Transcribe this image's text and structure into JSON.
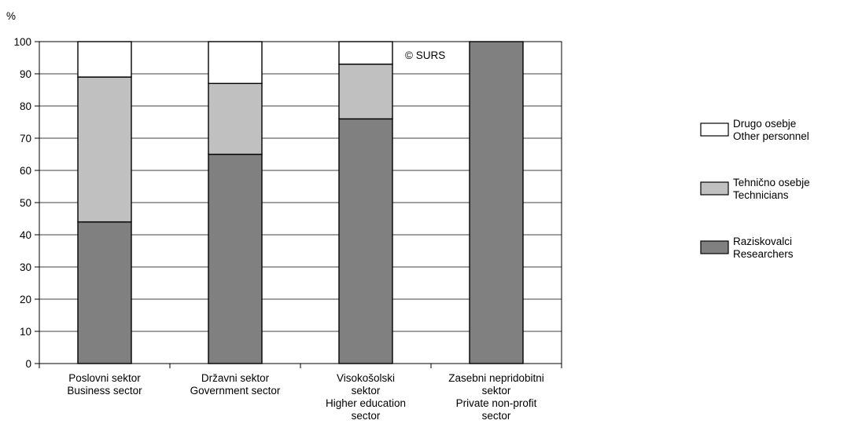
{
  "chart_data": {
    "type": "bar",
    "stacked": true,
    "y_unit_label": "%",
    "ylim": [
      0,
      100
    ],
    "y_ticks": [
      0,
      10,
      20,
      30,
      40,
      50,
      60,
      70,
      80,
      90,
      100
    ],
    "grid": true,
    "legend_position": "right",
    "watermark": "© SURS",
    "categories": [
      [
        "Poslovni sektor",
        "Business sector"
      ],
      [
        "Državni sektor",
        "Government sector"
      ],
      [
        "Visokošolski",
        "sektor",
        "Higher education",
        "sector"
      ],
      [
        "Zasebni nepridobitni",
        "sektor",
        "Private non-profit",
        "sector"
      ]
    ],
    "series": [
      {
        "name": [
          "Raziskovalci",
          "Researchers"
        ],
        "color": "#808080",
        "values": [
          44,
          65,
          76,
          100
        ]
      },
      {
        "name": [
          "Tehnično osebje",
          "Technicians"
        ],
        "color": "#c0c0c0",
        "values": [
          45,
          22,
          17,
          0
        ]
      },
      {
        "name": [
          "Drugo osebje",
          "Other personnel"
        ],
        "color": "#ffffff",
        "values": [
          11,
          13,
          7,
          0
        ]
      }
    ],
    "legend_order": [
      2,
      1,
      0
    ]
  }
}
